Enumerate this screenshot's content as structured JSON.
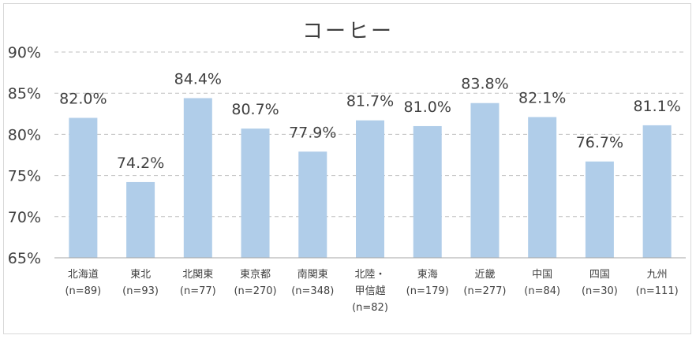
{
  "chart_data": {
    "type": "bar",
    "title": "コーヒー",
    "xlabel": "",
    "ylabel": "",
    "ylim": [
      65,
      90
    ],
    "yticks": [
      65,
      70,
      75,
      80,
      85,
      90
    ],
    "ytick_labels": [
      "65%",
      "70%",
      "75%",
      "80%",
      "85%",
      "90%"
    ],
    "grid": true,
    "bar_color": "#b0cde9",
    "categories": [
      {
        "lines": [
          "北海道",
          "(n=89)"
        ]
      },
      {
        "lines": [
          "東北",
          "(n=93)"
        ]
      },
      {
        "lines": [
          "北関東",
          "(n=77)"
        ]
      },
      {
        "lines": [
          "東京都",
          "(n=270)"
        ]
      },
      {
        "lines": [
          "南関東",
          "(n=348)"
        ]
      },
      {
        "lines": [
          "北陸・",
          "甲信越",
          "(n=82)"
        ]
      },
      {
        "lines": [
          "東海",
          "(n=179)"
        ]
      },
      {
        "lines": [
          "近畿",
          "(n=277)"
        ]
      },
      {
        "lines": [
          "中国",
          "(n=84)"
        ]
      },
      {
        "lines": [
          "四国",
          "(n=30)"
        ]
      },
      {
        "lines": [
          "九州",
          "(n=111)"
        ]
      }
    ],
    "values": [
      82.0,
      74.2,
      84.4,
      80.7,
      77.9,
      81.7,
      81.0,
      83.8,
      82.1,
      76.7,
      81.1
    ],
    "data_labels": [
      "82.0%",
      "74.2%",
      "84.4%",
      "80.7%",
      "77.9%",
      "81.7%",
      "81.0%",
      "83.8%",
      "82.1%",
      "76.7%",
      "81.1%"
    ]
  }
}
